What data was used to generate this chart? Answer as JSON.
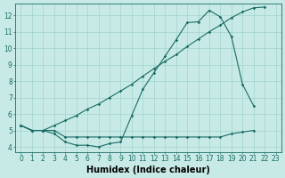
{
  "x_all": [
    0,
    1,
    2,
    3,
    4,
    5,
    6,
    7,
    8,
    9,
    10,
    11,
    12,
    13,
    14,
    15,
    16,
    17,
    18,
    19,
    20,
    21,
    22,
    23
  ],
  "line1_x": [
    0,
    1,
    2,
    3,
    4,
    5,
    6,
    7,
    8,
    9,
    10,
    11,
    12,
    13,
    14,
    15,
    16,
    17,
    18,
    19,
    20,
    21
  ],
  "line1_y": [
    5.3,
    5.0,
    5.0,
    5.0,
    4.6,
    4.6,
    4.6,
    4.6,
    4.6,
    4.6,
    4.6,
    4.6,
    4.6,
    4.6,
    4.6,
    4.6,
    4.6,
    4.6,
    4.6,
    4.8,
    4.9,
    5.0
  ],
  "line2_x": [
    0,
    1,
    2,
    3,
    4,
    5,
    6,
    7,
    8,
    9,
    10,
    11,
    12,
    13,
    14,
    15,
    16,
    17,
    18,
    19,
    20,
    21
  ],
  "line2_y": [
    5.3,
    5.0,
    5.0,
    4.8,
    4.3,
    4.1,
    4.1,
    4.0,
    4.2,
    4.3,
    5.9,
    7.5,
    8.5,
    9.5,
    10.5,
    11.55,
    11.6,
    12.3,
    11.9,
    10.7,
    7.8,
    6.5
  ],
  "line3_x": [
    0,
    1,
    2,
    3,
    4,
    5,
    6,
    7,
    8,
    9,
    10,
    11,
    12,
    13,
    14,
    15,
    16,
    17,
    18,
    19,
    20,
    21,
    22
  ],
  "line3_y": [
    5.3,
    5.0,
    5.0,
    5.3,
    5.6,
    5.9,
    6.3,
    6.6,
    7.0,
    7.4,
    7.8,
    8.3,
    8.75,
    9.2,
    9.6,
    10.1,
    10.55,
    11.0,
    11.4,
    11.85,
    12.2,
    12.45,
    12.5
  ],
  "bg_color": "#c8eae6",
  "line_color": "#1a6b65",
  "grid_color": "#a0d4cc",
  "xlabel": "Humidex (Indice chaleur)",
  "ylim": [
    3.7,
    12.7
  ],
  "xlim": [
    -0.5,
    23.5
  ],
  "yticks": [
    4,
    5,
    6,
    7,
    8,
    9,
    10,
    11,
    12
  ],
  "xticks": [
    0,
    1,
    2,
    3,
    4,
    5,
    6,
    7,
    8,
    9,
    10,
    11,
    12,
    13,
    14,
    15,
    16,
    17,
    18,
    19,
    20,
    21,
    22,
    23
  ],
  "tick_fontsize": 5.5,
  "label_fontsize": 7.0,
  "marker_size": 1.8,
  "line_width": 0.8
}
